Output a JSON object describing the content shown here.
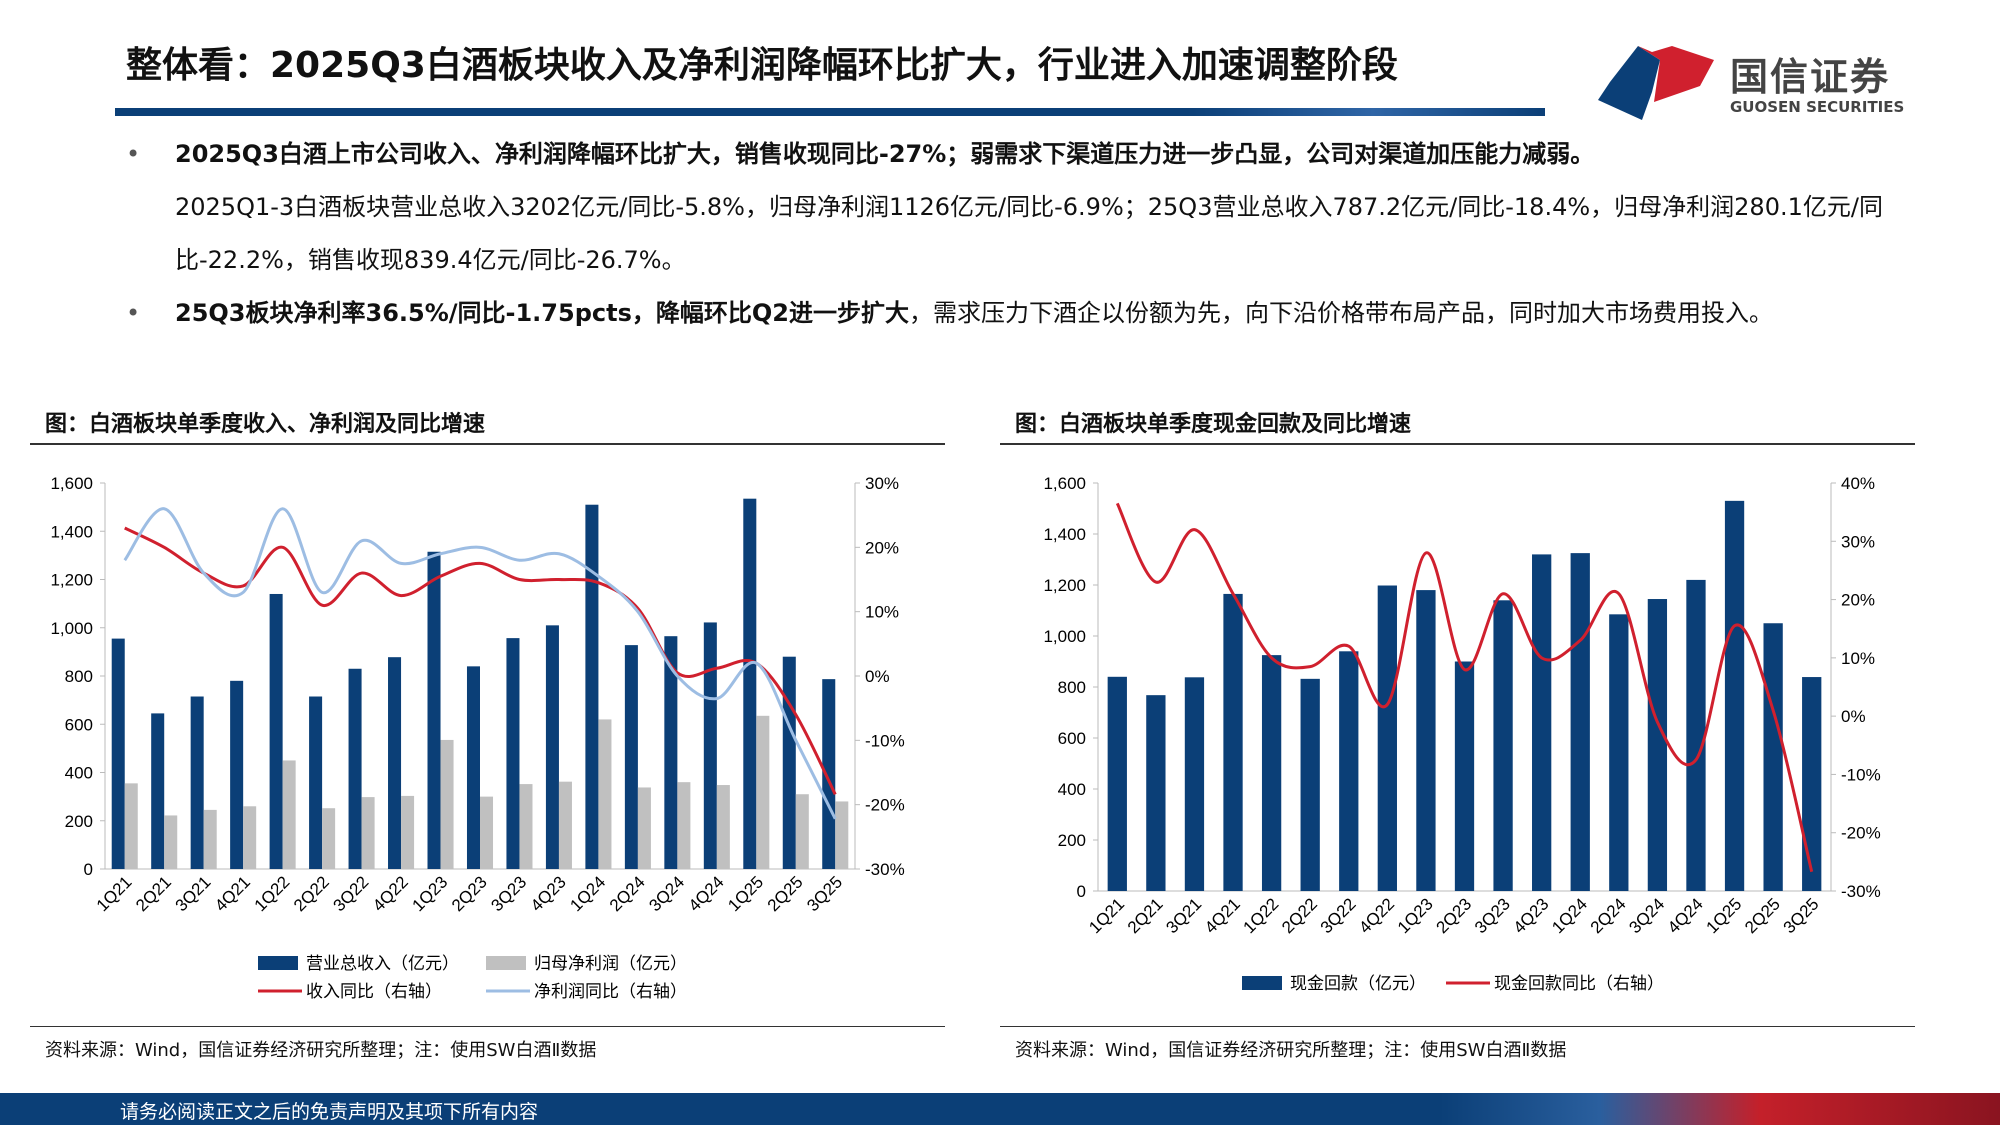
{
  "header": {
    "title": "整体看：2025Q3白酒板块收入及净利润降幅环比扩大，行业进入加速调整阶段",
    "logo_cn": "国信证券",
    "logo_en": "GUOSEN SECURITIES",
    "brand_colors": {
      "blue": "#0b3f77",
      "red": "#d0202e"
    }
  },
  "bullets": [
    {
      "bold": "2025Q3白酒上市公司收入、净利润降幅环比扩大，销售收现同比-27%；弱需求下渠道压力进一步凸显，公司对渠道加压能力减弱。",
      "text": "2025Q1-3白酒板块营业总收入3202亿元/同比-5.8%，归母净利润1126亿元/同比-6.9%；25Q3营业总收入787.2亿元/同比-18.4%，归母净利润280.1亿元/同比-22.2%，销售收现839.4亿元/同比-26.7%。"
    },
    {
      "bold": "25Q3板块净利率36.5%/同比-1.75pcts，降幅环比Q2进一步扩大",
      "text": "，需求压力下酒企以份额为先，向下沿价格带布局产品，同时加大市场费用投入。"
    }
  ],
  "charts": {
    "left": {
      "title": "图：白酒板块单季度收入、净利润及同比增速",
      "source": "资料来源：Wind，国信证券经济研究所整理；注：使用SW白酒Ⅱ数据"
    },
    "right": {
      "title": "图：白酒板块单季度现金回款及同比增速",
      "source": "资料来源：Wind，国信证券经济研究所整理；注：使用SW白酒Ⅱ数据"
    }
  },
  "chart_data": [
    {
      "type": "bar",
      "categories": [
        "1Q21",
        "2Q21",
        "3Q21",
        "4Q21",
        "1Q22",
        "2Q22",
        "3Q22",
        "4Q22",
        "1Q23",
        "2Q23",
        "3Q23",
        "4Q23",
        "1Q24",
        "2Q24",
        "3Q24",
        "4Q24",
        "1Q25",
        "2Q25",
        "3Q25"
      ],
      "ylim": [
        0,
        1600
      ],
      "yticks": [
        "0",
        "200",
        "400",
        "600",
        "800",
        "1,000",
        "1,200",
        "1,400",
        "1,600"
      ],
      "y2lim": [
        -30,
        30
      ],
      "y2ticks": [
        "-30%",
        "-20%",
        "-10%",
        "0%",
        "10%",
        "20%",
        "30%"
      ],
      "legend": "bottom",
      "series": [
        {
          "name": "营业总收入（亿元）",
          "type": "bar",
          "axis": "left",
          "color": "#0b3f77",
          "values": [
            955,
            645,
            715,
            780,
            1140,
            715,
            830,
            878,
            1315,
            840,
            957,
            1010,
            1510,
            928,
            965,
            1022,
            1535,
            880,
            787
          ]
        },
        {
          "name": "归母净利润（亿元）",
          "type": "bar",
          "axis": "left",
          "color": "#c0c0c0",
          "values": [
            355,
            222,
            245,
            260,
            450,
            252,
            298,
            303,
            535,
            300,
            352,
            362,
            620,
            338,
            360,
            348,
            635,
            310,
            280
          ]
        },
        {
          "name": "收入同比（右轴）",
          "type": "line",
          "axis": "right",
          "color": "#d0202e",
          "values": [
            23,
            20,
            16,
            14,
            20,
            11,
            16,
            12.5,
            15.5,
            17.5,
            15,
            15,
            14.5,
            10.5,
            0.5,
            1.2,
            2,
            -6,
            -18.4
          ]
        },
        {
          "name": "净利润同比（右轴）",
          "type": "line",
          "axis": "right",
          "color": "#9dbde3",
          "values": [
            18,
            26,
            16,
            13,
            26,
            13,
            21,
            17.5,
            19,
            20,
            18,
            19,
            15.5,
            10,
            0,
            -3.5,
            2,
            -10,
            -22.2
          ]
        }
      ]
    },
    {
      "type": "bar",
      "categories": [
        "1Q21",
        "2Q21",
        "3Q21",
        "4Q21",
        "1Q22",
        "2Q22",
        "3Q22",
        "4Q22",
        "1Q23",
        "2Q23",
        "3Q23",
        "4Q23",
        "1Q24",
        "2Q24",
        "3Q24",
        "4Q24",
        "1Q25",
        "2Q25",
        "3Q25"
      ],
      "ylim": [
        0,
        1600
      ],
      "yticks": [
        "0",
        "200",
        "400",
        "600",
        "800",
        "1,000",
        "1,200",
        "1,400",
        "1,600"
      ],
      "y2lim": [
        -30,
        40
      ],
      "y2ticks": [
        "-30%",
        "-20%",
        "-10%",
        "0%",
        "10%",
        "20%",
        "30%",
        "40%"
      ],
      "legend": "bottom",
      "series": [
        {
          "name": "现金回款（亿元）",
          "type": "bar",
          "axis": "left",
          "color": "#0b3f77",
          "values": [
            840,
            768,
            838,
            1165,
            925,
            832,
            940,
            1198,
            1180,
            900,
            1140,
            1320,
            1325,
            1085,
            1145,
            1220,
            1530,
            1050,
            839
          ]
        },
        {
          "name": "现金回款同比（右轴）",
          "type": "line",
          "axis": "right",
          "color": "#d0202e",
          "values": [
            36.5,
            23,
            32,
            21,
            10,
            8.5,
            12,
            2,
            28,
            8,
            21,
            10,
            13,
            21,
            -1,
            -7.5,
            15.5,
            1,
            -26.7
          ]
        }
      ]
    }
  ],
  "footer": {
    "disclaimer": "请务必阅读正文之后的免责声明及其项下所有内容"
  }
}
